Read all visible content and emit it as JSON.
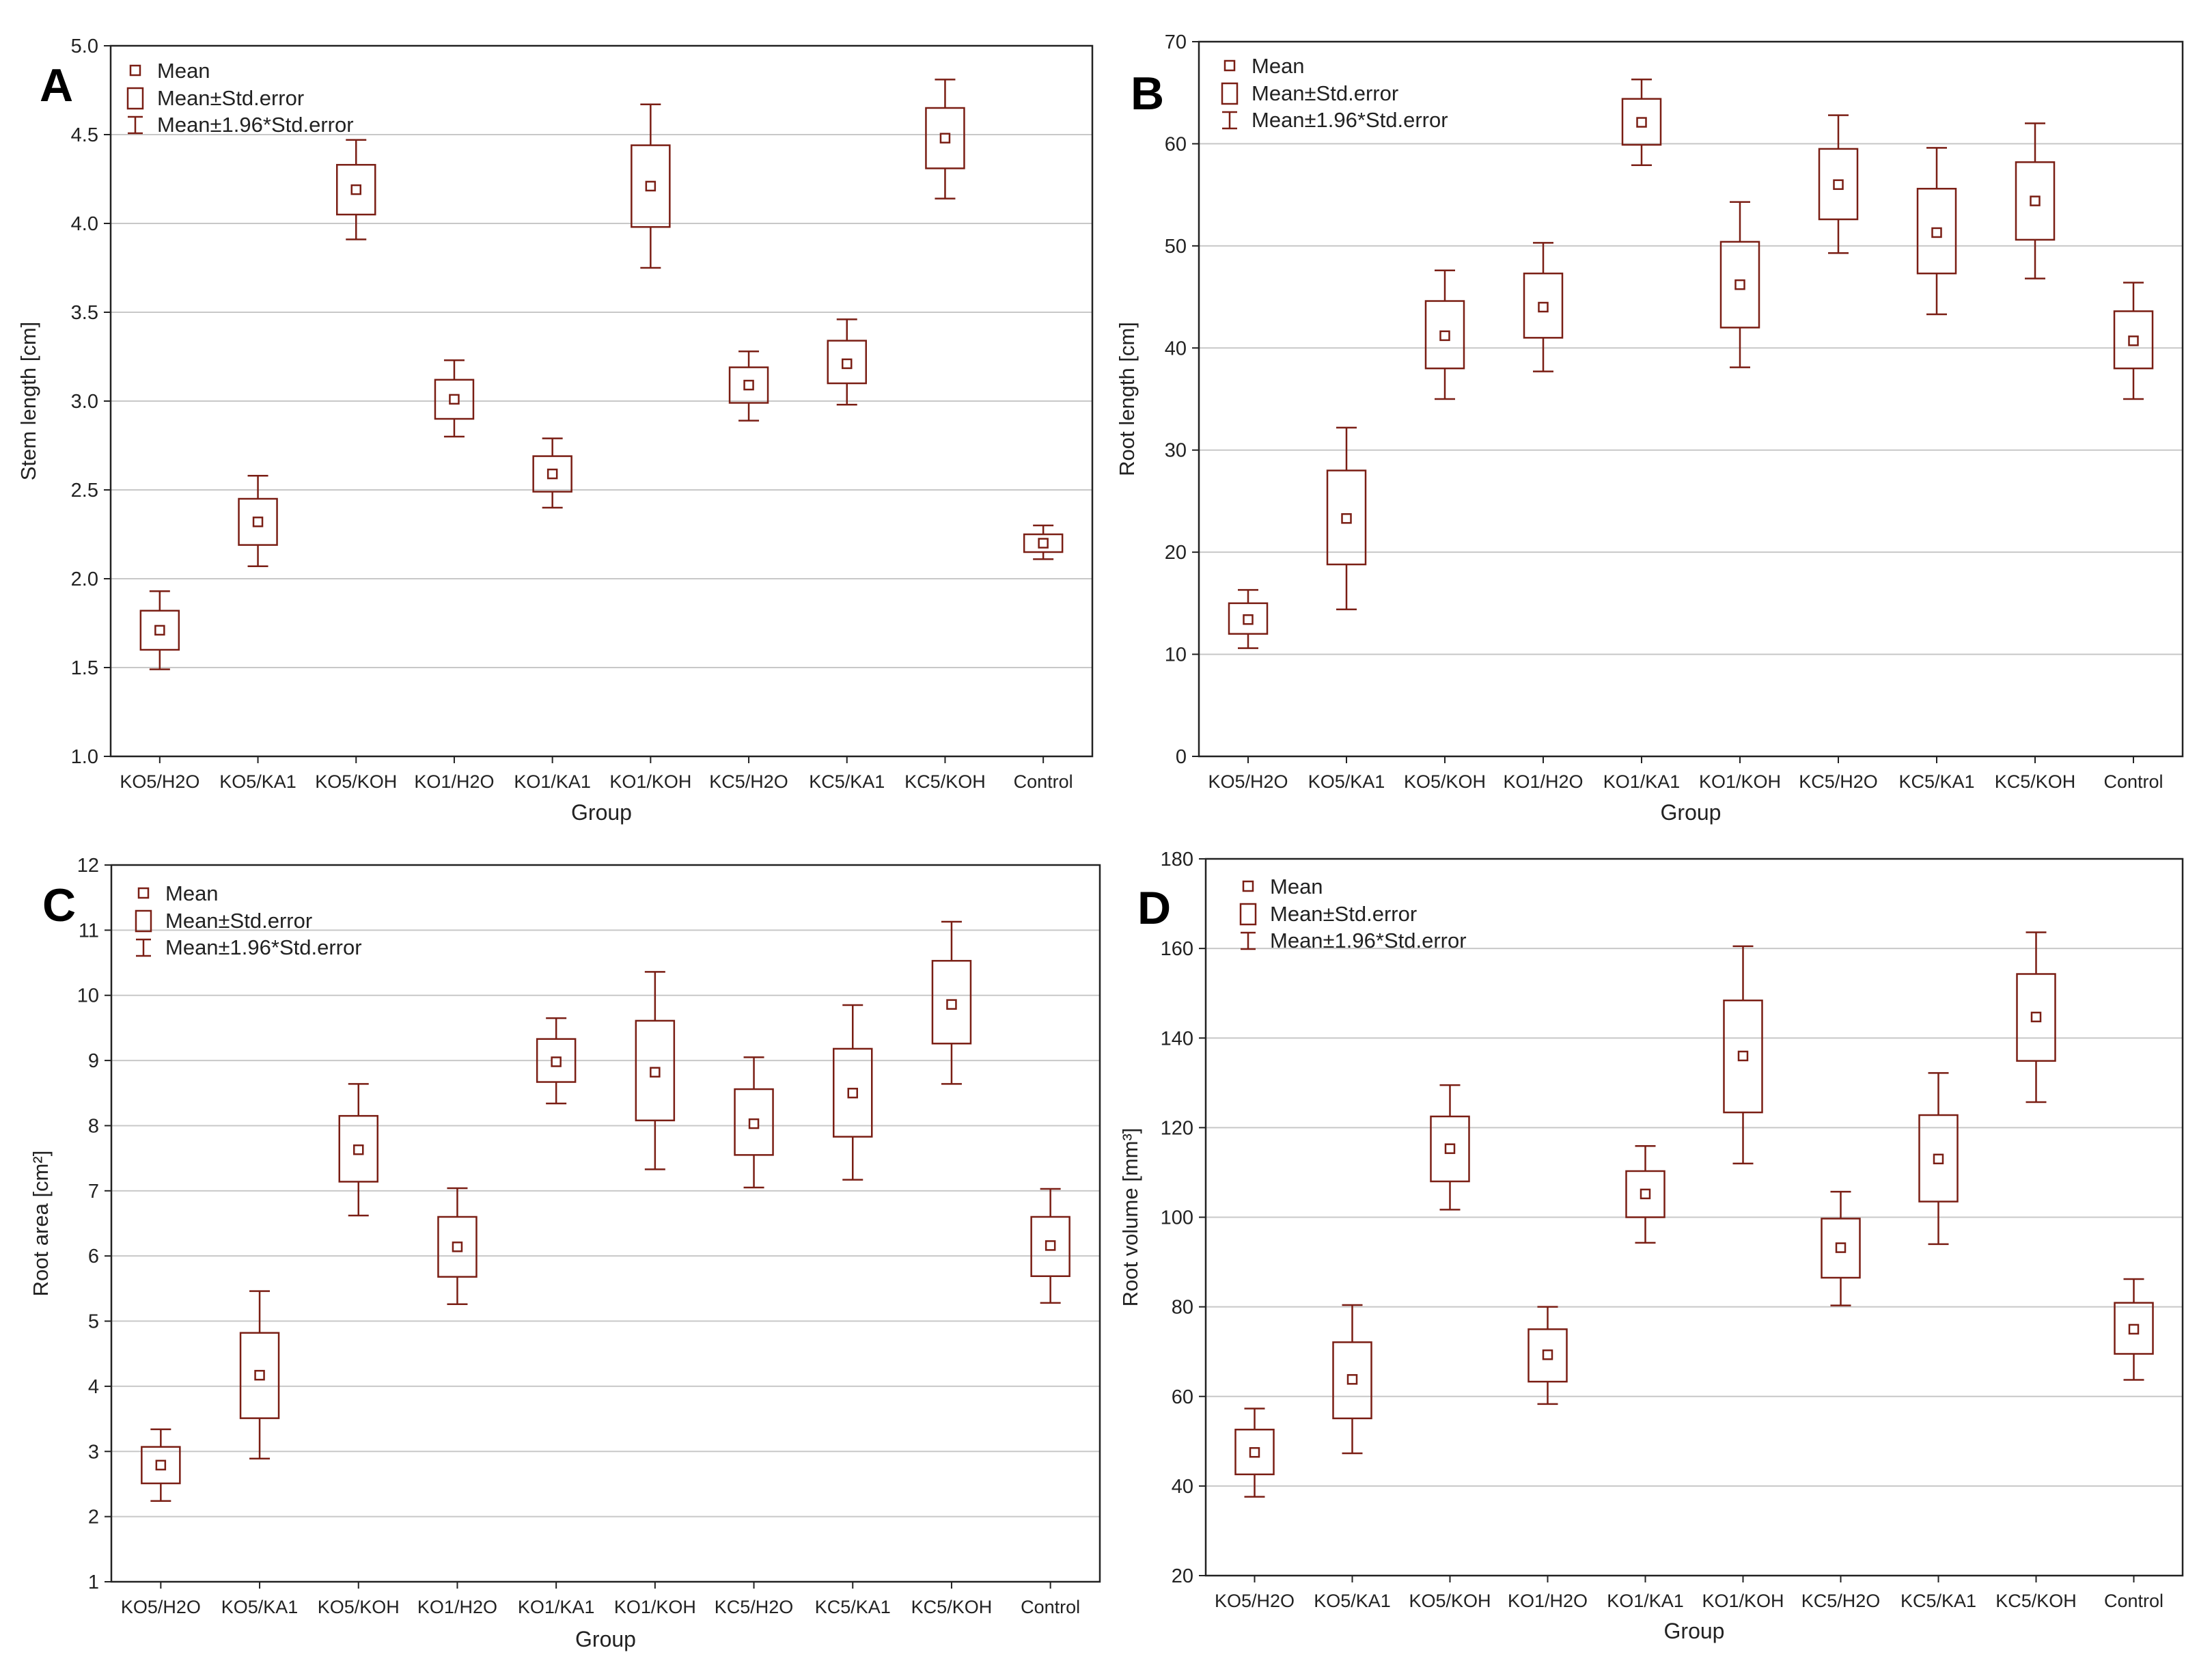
{
  "colors": {
    "series": "#7a1e14",
    "grid": "#c8c8c8",
    "frame": "#222222"
  },
  "legend": {
    "mean": "Mean",
    "se": "Mean±Std.error",
    "ci": "Mean±1.96*Std.error"
  },
  "chart_data": [
    {
      "panel": "A",
      "type": "box",
      "xlabel": "Group",
      "ylabel": "Stem length [cm]",
      "ylim": [
        1.0,
        5.0
      ],
      "yticks": [
        "1.0",
        "1.5",
        "2.0",
        "2.5",
        "3.0",
        "3.5",
        "4.0",
        "4.5",
        "5.0"
      ],
      "categories": [
        "KO5/H2O",
        "KO5/KA1",
        "KO5/KOH",
        "KO1/H2O",
        "KO1/KA1",
        "KO1/KOH",
        "KC5/H2O",
        "KC5/KA1",
        "KC5/KOH",
        "Control"
      ],
      "mean": [
        1.71,
        2.32,
        4.19,
        3.01,
        2.59,
        4.21,
        3.09,
        3.21,
        4.48,
        2.2
      ],
      "se_low": [
        1.6,
        2.19,
        4.05,
        2.9,
        2.49,
        3.98,
        2.99,
        3.1,
        4.31,
        2.15
      ],
      "se_high": [
        1.82,
        2.45,
        4.33,
        3.12,
        2.69,
        4.44,
        3.19,
        3.34,
        4.65,
        2.25
      ],
      "ci_low": [
        1.49,
        2.07,
        3.91,
        2.8,
        2.4,
        3.75,
        2.89,
        2.98,
        4.14,
        2.11
      ],
      "ci_high": [
        1.93,
        2.58,
        4.47,
        3.23,
        2.79,
        4.67,
        3.28,
        3.46,
        4.81,
        2.3
      ]
    },
    {
      "panel": "B",
      "type": "box",
      "xlabel": "Group",
      "ylabel": "Root length [cm]",
      "ylim": [
        0,
        70
      ],
      "yticks": [
        "0",
        "10",
        "20",
        "30",
        "40",
        "50",
        "60",
        "70"
      ],
      "categories": [
        "KO5/H2O",
        "KO5/KA1",
        "KO5/KOH",
        "KO1/H2O",
        "KO1/KA1",
        "KO1/KOH",
        "KC5/H2O",
        "KC5/KA1",
        "KC5/KOH",
        "Control"
      ],
      "mean": [
        13.4,
        23.3,
        41.2,
        44.0,
        62.1,
        46.2,
        56.0,
        51.3,
        54.4,
        40.7
      ],
      "se_low": [
        12.0,
        18.8,
        38.0,
        41.0,
        59.9,
        42.0,
        52.6,
        47.3,
        50.6,
        38.0
      ],
      "se_high": [
        15.0,
        28.0,
        44.6,
        47.3,
        64.4,
        50.4,
        59.5,
        55.6,
        58.2,
        43.6
      ],
      "ci_low": [
        10.6,
        14.4,
        35.0,
        37.7,
        57.9,
        38.1,
        49.3,
        43.3,
        46.8,
        35.0
      ],
      "ci_high": [
        16.3,
        32.2,
        47.6,
        50.3,
        66.3,
        54.3,
        62.8,
        59.6,
        62.0,
        46.4
      ]
    },
    {
      "panel": "C",
      "type": "box",
      "xlabel": "Group",
      "ylabel": "Root area [cm²]",
      "ylim": [
        1,
        12
      ],
      "yticks": [
        "1",
        "2",
        "3",
        "4",
        "5",
        "6",
        "7",
        "8",
        "9",
        "10",
        "11",
        "12"
      ],
      "categories": [
        "KO5/H2O",
        "KO5/KA1",
        "KO5/KOH",
        "KO1/H2O",
        "KO1/KA1",
        "KO1/KOH",
        "KC5/H2O",
        "KC5/KA1",
        "KC5/KOH",
        "Control"
      ],
      "mean": [
        2.79,
        4.17,
        7.63,
        6.14,
        8.98,
        8.82,
        8.03,
        8.5,
        9.86,
        6.16
      ],
      "se_low": [
        2.51,
        3.51,
        7.14,
        5.68,
        8.67,
        8.08,
        7.55,
        7.83,
        9.26,
        5.69
      ],
      "se_high": [
        3.07,
        4.82,
        8.15,
        6.6,
        9.33,
        9.61,
        8.56,
        9.18,
        10.53,
        6.6
      ],
      "ci_low": [
        2.24,
        2.89,
        6.62,
        5.26,
        8.34,
        7.33,
        7.05,
        7.17,
        8.64,
        5.28
      ],
      "ci_high": [
        3.34,
        5.46,
        8.64,
        7.04,
        9.65,
        10.36,
        9.05,
        9.85,
        11.13,
        7.03
      ]
    },
    {
      "panel": "D",
      "type": "box",
      "xlabel": "Group",
      "ylabel": "Root volume [mm³]",
      "ylim": [
        20,
        180
      ],
      "yticks": [
        "20",
        "40",
        "60",
        "80",
        "100",
        "120",
        "140",
        "160",
        "180"
      ],
      "categories": [
        "KO5/H2O",
        "KO5/KA1",
        "KO5/KOH",
        "KO1/H2O",
        "KO1/KA1",
        "KO1/KOH",
        "KC5/H2O",
        "KC5/KA1",
        "KC5/KOH",
        "Control"
      ],
      "mean": [
        47.5,
        63.8,
        115.3,
        69.3,
        105.2,
        136.0,
        93.2,
        113.0,
        144.7,
        75.0
      ],
      "se_low": [
        42.6,
        55.1,
        108.0,
        63.3,
        100.0,
        123.4,
        86.5,
        103.5,
        134.9,
        69.5
      ],
      "se_high": [
        52.6,
        72.1,
        122.5,
        75.0,
        110.3,
        148.4,
        99.7,
        122.8,
        154.3,
        80.9
      ],
      "ci_low": [
        37.6,
        47.3,
        101.7,
        58.3,
        94.3,
        112.0,
        80.3,
        94.0,
        125.7,
        63.7
      ],
      "ci_high": [
        57.3,
        80.4,
        129.5,
        80.0,
        115.9,
        160.5,
        105.7,
        132.2,
        163.6,
        86.2
      ]
    }
  ]
}
